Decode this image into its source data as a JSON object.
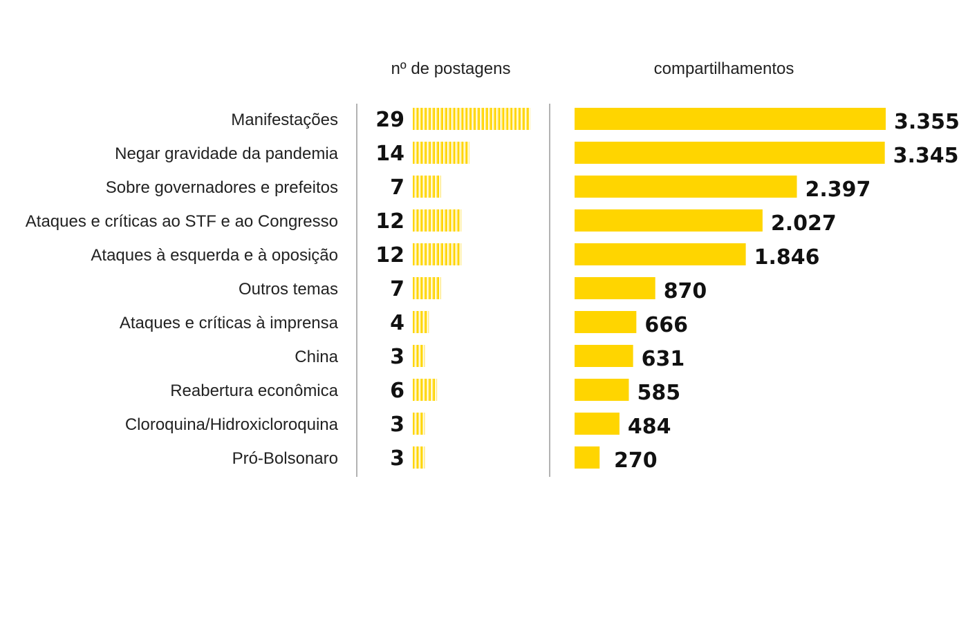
{
  "chart_data": {
    "type": "bar",
    "title": "",
    "xlabel": "",
    "ylabel": "",
    "categories": [
      "Manifestações",
      "Negar gravidade da pandemia",
      "Sobre governadores e prefeitos",
      "Ataques e críticas ao STF e ao Congresso",
      "Ataques à esquerda e à oposição",
      "Outros temas",
      "Ataques e críticas à imprensa",
      "China",
      "Reabertura econômica",
      "Cloroquina/Hidroxicloroquina",
      "Pró-Bolsonaro"
    ],
    "series": [
      {
        "name": "nº de postagens",
        "values": [
          29,
          14,
          7,
          12,
          12,
          7,
          4,
          3,
          6,
          3,
          3
        ],
        "labels": [
          "29",
          "14",
          "7",
          "12",
          "12",
          "7",
          "4",
          "3",
          "6",
          "3",
          "3"
        ],
        "style": "tally"
      },
      {
        "name": "compartilhamentos",
        "values": [
          3355,
          3345,
          2397,
          2027,
          1846,
          870,
          666,
          631,
          585,
          484,
          270
        ],
        "labels": [
          "3.355",
          "3.345",
          "2.397",
          "2.027",
          "1.846",
          "870",
          "666",
          "631",
          "585",
          "484",
          "270"
        ],
        "style": "solid"
      }
    ],
    "colors": {
      "bar": "#FFD500",
      "divider": "#999999"
    }
  }
}
